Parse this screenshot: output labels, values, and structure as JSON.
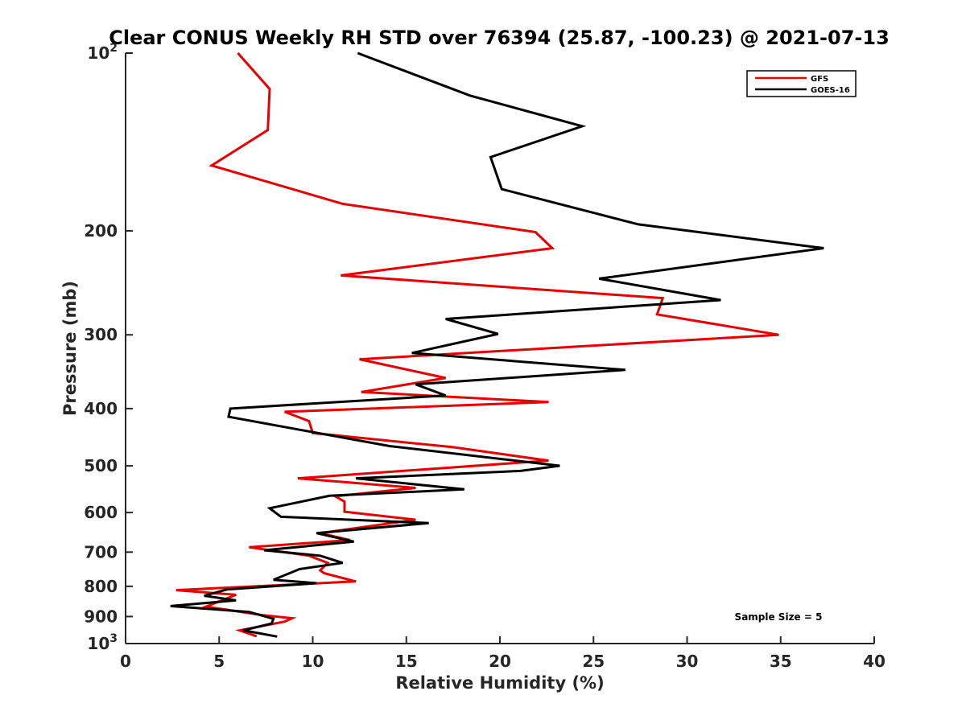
{
  "chart_data": {
    "type": "line",
    "title": "Clear CONUS Weekly RH STD over 76394 (25.87, -100.23) @ 2021-07-13",
    "xlabel": "Relative Humidity (%)",
    "ylabel": "Pressure (mb)",
    "xlim": [
      0,
      40
    ],
    "ylim": [
      100,
      1000
    ],
    "yscale": "log",
    "y_reversed": true,
    "grid": false,
    "legend_position": "top-right",
    "xticks": [
      "0",
      "5",
      "10",
      "15",
      "20",
      "25",
      "30",
      "35",
      "40"
    ],
    "yticks": [
      {
        "value": 100,
        "label": "10",
        "sup": "2"
      },
      {
        "value": 200,
        "label": "200"
      },
      {
        "value": 300,
        "label": "300"
      },
      {
        "value": 400,
        "label": "400"
      },
      {
        "value": 500,
        "label": "500"
      },
      {
        "value": 600,
        "label": "600"
      },
      {
        "value": 700,
        "label": "700"
      },
      {
        "value": 800,
        "label": "800"
      },
      {
        "value": 900,
        "label": "900"
      },
      {
        "value": 1000,
        "label": "10",
        "sup": "3"
      }
    ],
    "annotation": "Sample Size = 5",
    "series": [
      {
        "name": "GFS",
        "color": "#e60000",
        "x": [
          6.0,
          7.7,
          7.6,
          4.6,
          11.6,
          21.9,
          22.8,
          11.5,
          28.7,
          28.4,
          34.9,
          12.5,
          17.1,
          12.6,
          22.6,
          8.5,
          9.8,
          10.0,
          17.5,
          22.6,
          9.2,
          15.5,
          11.2,
          11.7,
          11.7,
          15.5,
          10.4,
          12.0,
          6.6,
          9.8,
          10.8,
          10.4,
          10.6,
          12.3,
          2.7,
          5.9,
          4.3,
          7.3,
          8.9,
          8.5,
          6.1,
          7.0
        ],
        "y": [
          100,
          115,
          135,
          155,
          180,
          201,
          214,
          238,
          260,
          277,
          300,
          330,
          355,
          375,
          390,
          405,
          420,
          440,
          465,
          490,
          525,
          545,
          563,
          575,
          598,
          617,
          650,
          668,
          687,
          710,
          730,
          752,
          760,
          785,
          812,
          827,
          866,
          895,
          906,
          918,
          950,
          972
        ]
      },
      {
        "name": "GOES-16",
        "color": "#000000",
        "x": [
          12.4,
          18.4,
          24.4,
          19.5,
          20.1,
          27.4,
          37.3,
          25.3,
          31.8,
          17.1,
          19.9,
          15.3,
          26.7,
          15.5,
          17.1,
          5.6,
          5.5,
          14.1,
          23.2,
          21.1,
          12.3,
          18.1,
          10.9,
          7.7,
          8.3,
          16.2,
          10.2,
          12.2,
          7.4,
          10.4,
          11.6,
          9.3,
          7.9,
          10.2,
          5.4,
          4.2,
          5.9,
          2.4,
          6.6,
          7.9,
          7.8,
          6.3,
          8.1
        ],
        "y": [
          100,
          118,
          133,
          150,
          170,
          195,
          214,
          241,
          262,
          282,
          299,
          322,
          344,
          364,
          380,
          400,
          413,
          463,
          500,
          510,
          525,
          548,
          562,
          590,
          610,
          625,
          650,
          672,
          695,
          710,
          730,
          748,
          780,
          790,
          810,
          830,
          845,
          864,
          884,
          908,
          925,
          950,
          973
        ]
      }
    ]
  }
}
